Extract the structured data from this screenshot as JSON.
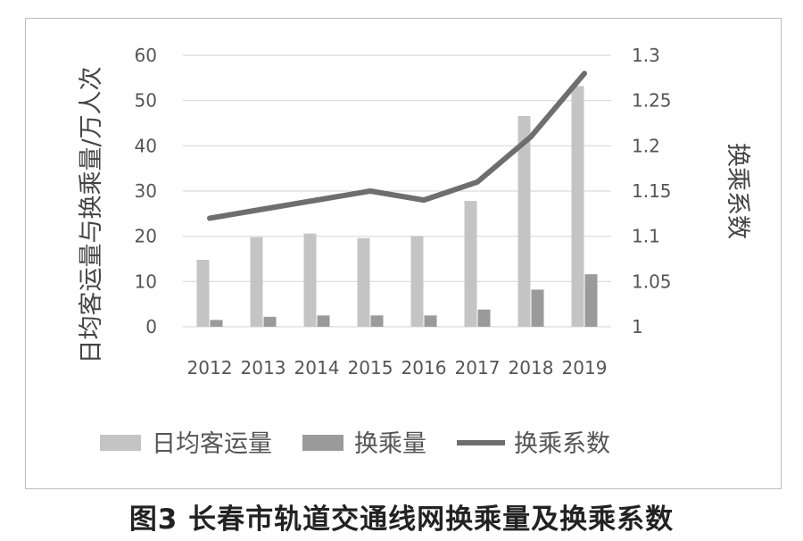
{
  "caption": "图3 长春市轨道交通线网换乘量及换乘系数",
  "chart_data": {
    "type": "bar",
    "categories": [
      "2012",
      "2013",
      "2014",
      "2015",
      "2016",
      "2017",
      "2018",
      "2019"
    ],
    "series": [
      {
        "name": "日均客运量",
        "kind": "bar",
        "axis": "left",
        "color": "#c4c4c4",
        "values": [
          14.8,
          19.8,
          20.6,
          19.6,
          20.0,
          27.8,
          46.6,
          53.2
        ]
      },
      {
        "name": "换乘量",
        "kind": "bar",
        "axis": "left",
        "color": "#9a9a9a",
        "values": [
          1.5,
          2.2,
          2.5,
          2.5,
          2.5,
          3.8,
          8.2,
          11.6
        ]
      },
      {
        "name": "换乘系数",
        "kind": "line",
        "axis": "right",
        "color": "#6e6e6e",
        "values": [
          1.12,
          1.13,
          1.14,
          1.15,
          1.14,
          1.16,
          1.21,
          1.28
        ]
      }
    ],
    "y_left": {
      "label": "日均客运量与换乘量/万人次",
      "min": 0,
      "max": 60,
      "ticks": [
        "0",
        "10",
        "20",
        "30",
        "40",
        "50",
        "60"
      ]
    },
    "y_right": {
      "label": "换乘系数",
      "min": 1,
      "max": 1.3,
      "ticks": [
        "1",
        "1.05",
        "1.1",
        "1.15",
        "1.2",
        "1.25",
        "1.3"
      ]
    },
    "grid": true,
    "legend_position": "bottom"
  }
}
